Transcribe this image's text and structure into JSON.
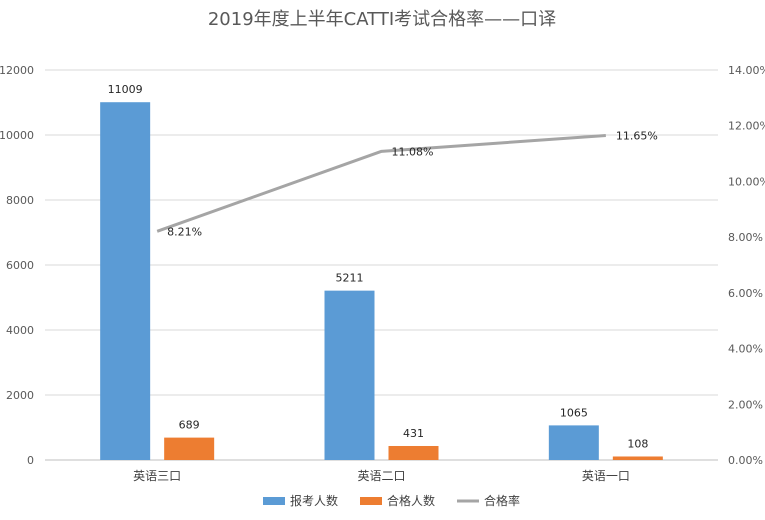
{
  "chart_data": {
    "type": "bar",
    "title": "2019年度上半年CATTI考试合格率——口译",
    "categories": [
      "英语三口",
      "英语二口",
      "英语一口"
    ],
    "series": [
      {
        "name": "报考人数",
        "kind": "bar",
        "axis": "left",
        "color": "#5B9BD5",
        "values": [
          11009,
          5211,
          1065
        ],
        "labels": [
          "11009",
          "5211",
          "1065"
        ]
      },
      {
        "name": "合格人数",
        "kind": "bar",
        "axis": "left",
        "color": "#ED7D31",
        "values": [
          689,
          431,
          108
        ],
        "labels": [
          "689",
          "431",
          "108"
        ]
      },
      {
        "name": "合格率",
        "kind": "line",
        "axis": "right",
        "color": "#A5A5A5",
        "values": [
          8.21,
          11.08,
          11.65
        ],
        "labels": [
          "8.21%",
          "11.08%",
          "11.65%"
        ]
      }
    ],
    "y_left": {
      "min": 0,
      "max": 12000,
      "ticks": [
        "0",
        "2000",
        "4000",
        "6000",
        "8000",
        "10000",
        "12000"
      ]
    },
    "y_right": {
      "min": 0,
      "max": 14,
      "ticks": [
        "0.00%",
        "2.00%",
        "4.00%",
        "6.00%",
        "8.00%",
        "10.00%",
        "12.00%",
        "14.00%"
      ]
    },
    "grid": true,
    "legend_position": "bottom"
  }
}
